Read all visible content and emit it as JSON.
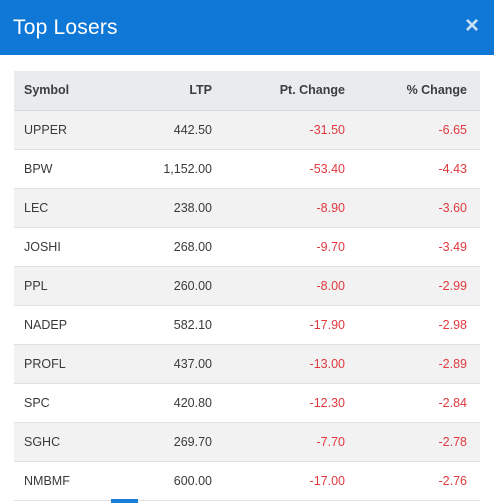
{
  "header": {
    "title": "Top Losers",
    "close_label": "×"
  },
  "table": {
    "columns": [
      "Symbol",
      "LTP",
      "Pt. Change",
      "% Change"
    ],
    "rows": [
      {
        "symbol": "UPPER",
        "ltp": "442.50",
        "pt_change": "-31.50",
        "pct_change": "-6.65"
      },
      {
        "symbol": "BPW",
        "ltp": "1,152.00",
        "pt_change": "-53.40",
        "pct_change": "-4.43"
      },
      {
        "symbol": "LEC",
        "ltp": "238.00",
        "pt_change": "-8.90",
        "pct_change": "-3.60"
      },
      {
        "symbol": "JOSHI",
        "ltp": "268.00",
        "pt_change": "-9.70",
        "pct_change": "-3.49"
      },
      {
        "symbol": "PPL",
        "ltp": "260.00",
        "pt_change": "-8.00",
        "pct_change": "-2.99"
      },
      {
        "symbol": "NADEP",
        "ltp": "582.10",
        "pt_change": "-17.90",
        "pct_change": "-2.98"
      },
      {
        "symbol": "PROFL",
        "ltp": "437.00",
        "pt_change": "-13.00",
        "pct_change": "-2.89"
      },
      {
        "symbol": "SPC",
        "ltp": "420.80",
        "pt_change": "-12.30",
        "pct_change": "-2.84"
      },
      {
        "symbol": "SGHC",
        "ltp": "269.70",
        "pt_change": "-7.70",
        "pct_change": "-2.78"
      },
      {
        "symbol": "NMBMF",
        "ltp": "600.00",
        "pt_change": "-17.00",
        "pct_change": "-2.76"
      }
    ]
  },
  "colors": {
    "header_bg": "#0f78d6",
    "negative": "#e0393e",
    "accent": "#1a7fd9"
  }
}
